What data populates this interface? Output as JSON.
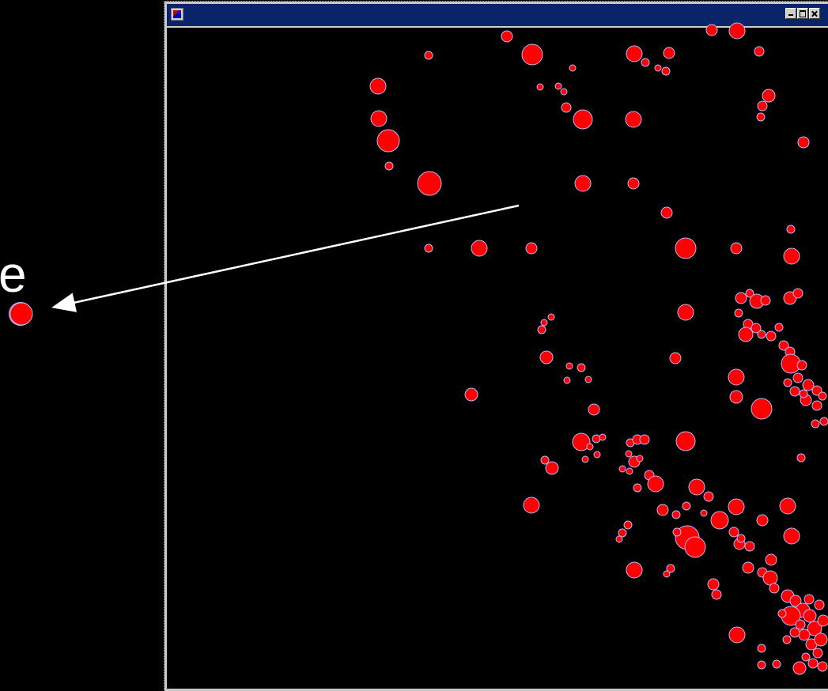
{
  "legend": {
    "partial_letter": "e"
  },
  "window": {
    "title": "",
    "buttons": [
      "minimize",
      "maximize",
      "close"
    ]
  },
  "icons": {
    "app": "app-icon",
    "minimize": "minimize-icon",
    "maximize": "maximize-icon",
    "close": "close-icon"
  },
  "colors": {
    "point_fill": "#ff0000",
    "point_outline": "#b8b8ff",
    "background": "#000000",
    "titlebar": "#0a246a",
    "arrow": "#ffffff"
  }
}
